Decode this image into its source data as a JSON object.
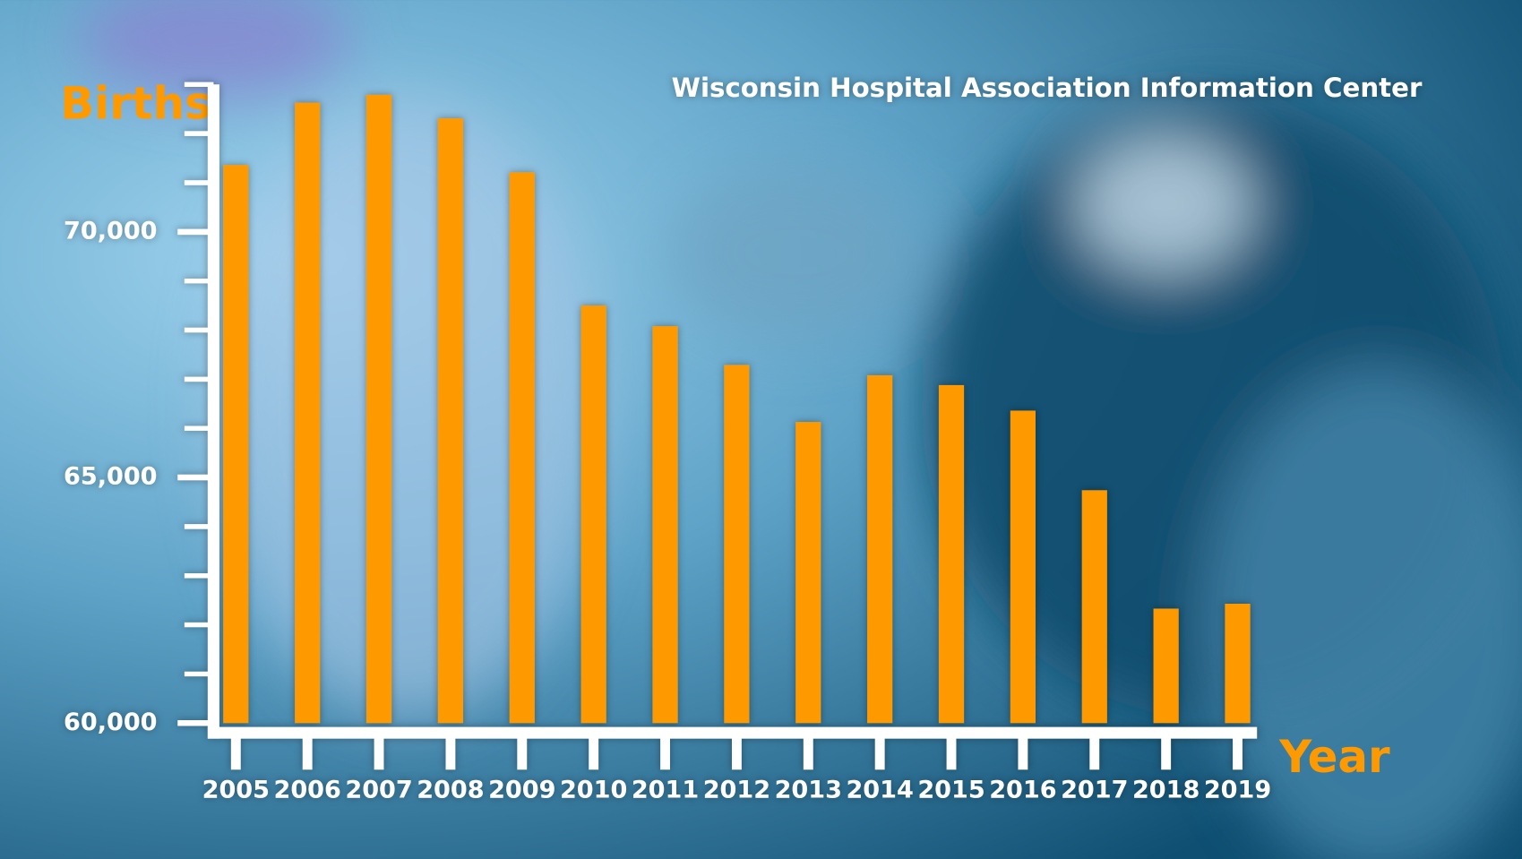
{
  "chart_data": {
    "type": "bar",
    "title": "Wisconsin Hospital Association Information Center",
    "y_label": "Births",
    "x_label": "Year",
    "categories": [
      "2005",
      "2006",
      "2007",
      "2008",
      "2009",
      "2010",
      "2011",
      "2012",
      "2013",
      "2014",
      "2015",
      "2016",
      "2017",
      "2018",
      "2019"
    ],
    "values": [
      71360,
      72630,
      72790,
      72310,
      71210,
      68500,
      68080,
      67290,
      66130,
      67080,
      66880,
      66360,
      64740,
      62330,
      62430
    ],
    "color": "#ff9900",
    "ylim": [
      60000,
      73000
    ],
    "yticks": [
      {
        "value": 60000,
        "label": "60,000"
      },
      {
        "value": 65000,
        "label": "65,000"
      },
      {
        "value": 70000,
        "label": "70,000"
      }
    ],
    "yticks_minor": [
      61000,
      62000,
      63000,
      64000,
      66000,
      67000,
      68000,
      69000,
      71000,
      72000,
      73000
    ]
  }
}
